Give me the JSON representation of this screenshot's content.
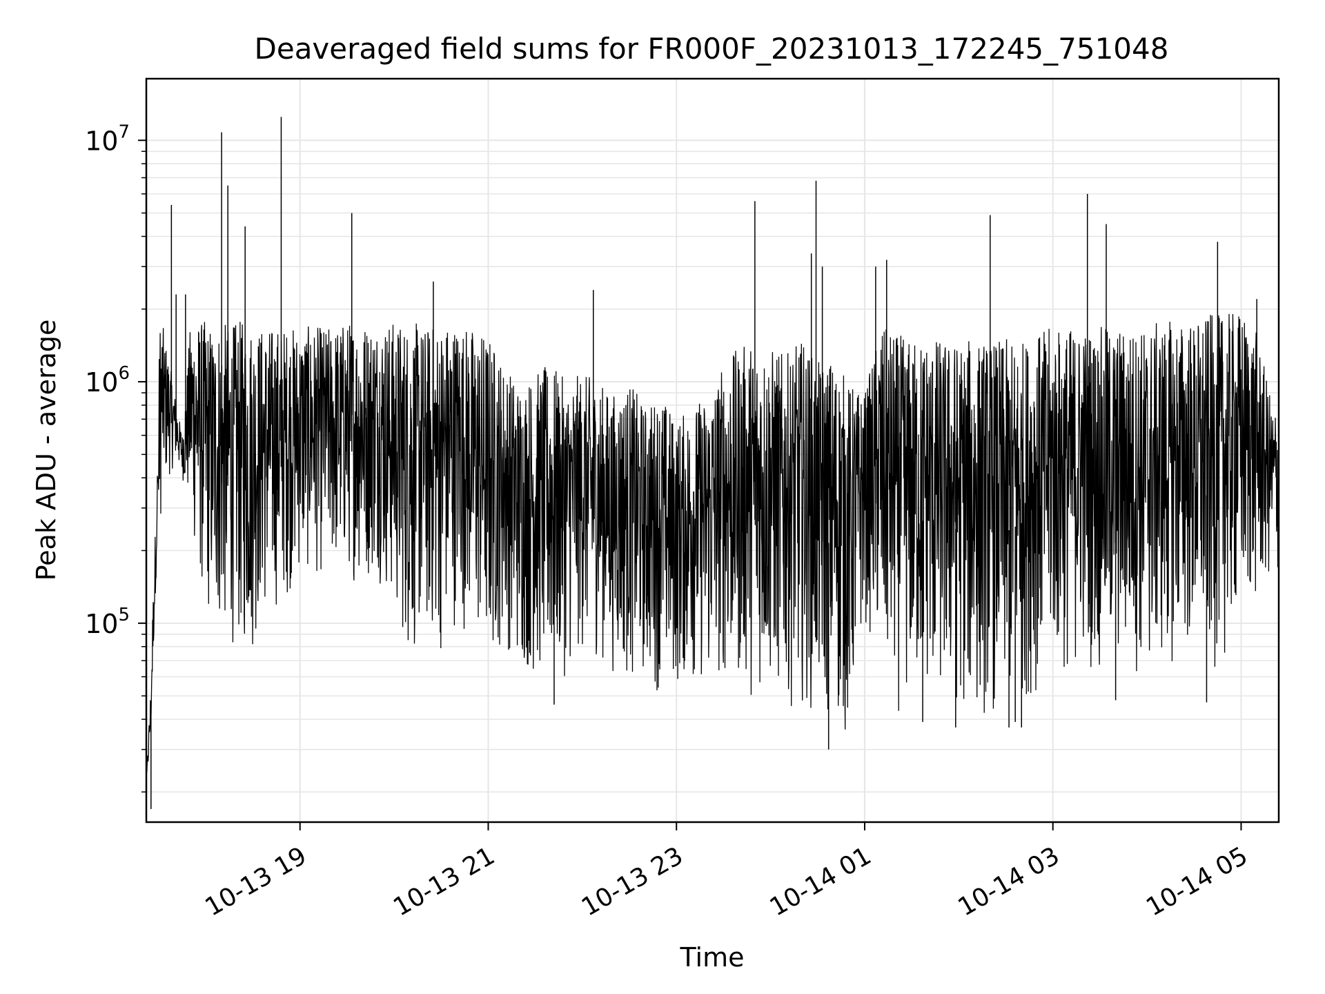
{
  "chart_data": {
    "type": "line",
    "title": "Deaveraged field sums for FR000F_20231013_172245_751048",
    "xlabel": "Time",
    "ylabel": "Peak ADU - average",
    "yscale": "log",
    "ylim": [
      15000,
      18000000
    ],
    "xlim": [
      "2023-10-13 17:22",
      "2023-10-14 05:24"
    ],
    "grid": true,
    "line_color": "#000000",
    "x_ticks": [
      {
        "t": "2023-10-13 19:00",
        "label": "10-13 19"
      },
      {
        "t": "2023-10-13 21:00",
        "label": "10-13 21"
      },
      {
        "t": "2023-10-13 23:00",
        "label": "10-13 23"
      },
      {
        "t": "2023-10-14 01:00",
        "label": "10-14 01"
      },
      {
        "t": "2023-10-14 03:00",
        "label": "10-14 03"
      },
      {
        "t": "2023-10-14 05:00",
        "label": "10-14 05"
      }
    ],
    "y_ticks": [
      {
        "value": 100000,
        "base": "10",
        "exp": "5"
      },
      {
        "value": 1000000,
        "base": "10",
        "exp": "6"
      },
      {
        "value": 10000000,
        "base": "10",
        "exp": "7"
      }
    ],
    "series": [
      {
        "x": [
          "2023-10-13 17:22",
          "2023-10-13 17:23",
          "2023-10-13 17:25",
          "2023-10-13 17:26",
          "2023-10-13 17:28",
          "2023-10-13 17:31",
          "2023-10-13 17:34",
          "2023-10-13 17:37",
          "2023-10-13 17:40",
          "2023-10-13 17:45",
          "2023-10-13 17:50",
          "2023-10-13 17:55",
          "2023-10-13 18:00",
          "2023-10-13 18:05",
          "2023-10-13 18:10",
          "2023-10-13 18:15",
          "2023-10-13 18:20",
          "2023-10-13 18:25",
          "2023-10-13 18:30",
          "2023-10-13 18:35",
          "2023-10-13 18:40",
          "2023-10-13 18:45",
          "2023-10-13 18:50",
          "2023-10-13 19:00",
          "2023-10-13 19:10",
          "2023-10-13 19:20",
          "2023-10-13 19:30",
          "2023-10-13 19:40",
          "2023-10-13 19:50",
          "2023-10-13 20:00",
          "2023-10-13 20:10",
          "2023-10-13 20:20",
          "2023-10-13 20:30",
          "2023-10-13 20:40",
          "2023-10-13 20:50",
          "2023-10-13 21:00",
          "2023-10-13 21:10",
          "2023-10-13 21:20",
          "2023-10-13 21:30",
          "2023-10-13 21:40",
          "2023-10-13 21:50",
          "2023-10-13 22:00",
          "2023-10-13 22:10",
          "2023-10-13 22:20",
          "2023-10-13 22:30",
          "2023-10-13 22:40",
          "2023-10-13 22:50",
          "2023-10-13 23:00",
          "2023-10-13 23:10",
          "2023-10-13 23:20",
          "2023-10-13 23:30",
          "2023-10-13 23:40",
          "2023-10-13 23:50",
          "2023-10-14 00:00",
          "2023-10-14 00:10",
          "2023-10-14 00:20",
          "2023-10-14 00:30",
          "2023-10-14 00:40",
          "2023-10-14 00:50",
          "2023-10-14 01:00",
          "2023-10-14 01:10",
          "2023-10-14 01:20",
          "2023-10-14 01:30",
          "2023-10-14 01:40",
          "2023-10-14 01:50",
          "2023-10-14 02:00",
          "2023-10-14 02:10",
          "2023-10-14 02:20",
          "2023-10-14 02:30",
          "2023-10-14 02:40",
          "2023-10-14 02:50",
          "2023-10-14 03:00",
          "2023-10-14 03:10",
          "2023-10-14 03:20",
          "2023-10-14 03:30",
          "2023-10-14 03:40",
          "2023-10-14 03:50",
          "2023-10-14 04:00",
          "2023-10-14 04:10",
          "2023-10-14 04:20",
          "2023-10-14 04:30",
          "2023-10-14 04:40",
          "2023-10-14 04:50",
          "2023-10-14 05:00",
          "2023-10-14 05:10",
          "2023-10-14 05:20"
        ],
        "lo": [
          18000,
          22000,
          30000,
          45000,
          100000,
          250000,
          350000,
          400000,
          450000,
          400000,
          250000,
          150000,
          100000,
          90000,
          80000,
          80000,
          75000,
          70000,
          70000,
          100000,
          100000,
          110000,
          120000,
          150000,
          150000,
          150000,
          150000,
          140000,
          150000,
          100000,
          65000,
          80000,
          70000,
          100000,
          80000,
          60000,
          80000,
          60000,
          55000,
          50000,
          60000,
          70000,
          70000,
          60000,
          55000,
          55000,
          50000,
          50000,
          55000,
          50000,
          55000,
          50000,
          48000,
          48000,
          45000,
          45000,
          40000,
          35000,
          30000,
          100000,
          60000,
          40000,
          45000,
          45000,
          42000,
          40000,
          38000,
          40000,
          38000,
          45000,
          50000,
          60000,
          55000,
          70000,
          55000,
          60000,
          60000,
          55000,
          60000,
          70000,
          65000,
          60000,
          70000,
          100000,
          110000,
          150000
        ],
        "hi": [
          25000,
          35000,
          70000,
          150000,
          400000,
          2000000,
          1500000,
          1200000,
          900000,
          600000,
          1700000,
          1800000,
          1800000,
          1700000,
          1800000,
          1700000,
          1800000,
          1800000,
          1800000,
          1700000,
          1700000,
          1700000,
          1700000,
          1700000,
          1700000,
          1700000,
          1800000,
          1800000,
          1800000,
          1800000,
          1800000,
          1700000,
          1800000,
          1800000,
          1700000,
          1600000,
          1200000,
          1000000,
          1100000,
          1200000,
          1000000,
          1100000,
          1000000,
          900000,
          1000000,
          800000,
          900000,
          700000,
          800000,
          900000,
          1200000,
          1400000,
          1500000,
          1400000,
          1300000,
          1500000,
          1200000,
          1300000,
          1000000,
          900000,
          1700000,
          1600000,
          1500000,
          1600000,
          1500000,
          1500000,
          1500000,
          1500000,
          1500000,
          1500000,
          1600000,
          1700000,
          1700000,
          1700000,
          1700000,
          1700000,
          1700000,
          1700000,
          1800000,
          1800000,
          1800000,
          1900000,
          1900000,
          2000000,
          1600000,
          800000
        ]
      }
    ],
    "spikes": [
      {
        "t": "2023-10-13 17:38",
        "value": 5400000
      },
      {
        "t": "2023-10-13 17:41",
        "value": 2300000
      },
      {
        "t": "2023-10-13 17:47",
        "value": 2300000
      },
      {
        "t": "2023-10-13 18:10",
        "value": 10800000
      },
      {
        "t": "2023-10-13 18:14",
        "value": 6500000
      },
      {
        "t": "2023-10-13 18:25",
        "value": 4400000
      },
      {
        "t": "2023-10-13 18:48",
        "value": 12500000
      },
      {
        "t": "2023-10-13 19:33",
        "value": 5000000
      },
      {
        "t": "2023-10-13 20:25",
        "value": 2600000
      },
      {
        "t": "2023-10-13 22:07",
        "value": 2400000
      },
      {
        "t": "2023-10-13 23:50",
        "value": 5600000
      },
      {
        "t": "2023-10-14 00:29",
        "value": 6800000
      },
      {
        "t": "2023-10-14 00:26",
        "value": 3400000
      },
      {
        "t": "2023-10-14 00:33",
        "value": 3000000
      },
      {
        "t": "2023-10-14 01:07",
        "value": 3000000
      },
      {
        "t": "2023-10-14 01:14",
        "value": 3200000
      },
      {
        "t": "2023-10-14 02:20",
        "value": 4900000
      },
      {
        "t": "2023-10-14 03:22",
        "value": 6000000
      },
      {
        "t": "2023-10-14 03:34",
        "value": 4500000
      },
      {
        "t": "2023-10-14 04:45",
        "value": 3800000
      },
      {
        "t": "2023-10-14 05:10",
        "value": 2200000
      }
    ],
    "dips": [
      {
        "t": "2023-10-13 17:25",
        "value": 17000
      },
      {
        "t": "2023-10-13 21:42",
        "value": 46000
      },
      {
        "t": "2023-10-14 00:37",
        "value": 30000
      },
      {
        "t": "2023-10-14 01:37",
        "value": 39000
      },
      {
        "t": "2023-10-14 01:58",
        "value": 37000
      },
      {
        "t": "2023-10-14 02:32",
        "value": 37000
      },
      {
        "t": "2023-10-14 02:36",
        "value": 39000
      },
      {
        "t": "2023-10-14 02:40",
        "value": 37000
      },
      {
        "t": "2023-10-14 03:40",
        "value": 48000
      },
      {
        "t": "2023-10-14 04:38",
        "value": 47000
      }
    ]
  }
}
